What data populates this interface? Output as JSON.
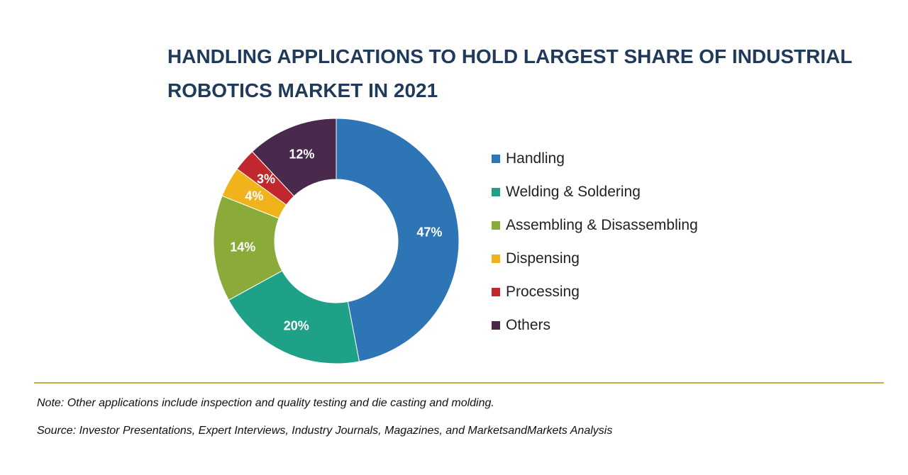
{
  "chart_data": {
    "type": "pie",
    "variant": "donut",
    "title": "HANDLING APPLICATIONS TO HOLD LARGEST SHARE OF INDUSTRIAL ROBOTICS MARKET IN 2021",
    "categories": [
      "Handling",
      "Welding & Soldering",
      "Assembling & Disassembling",
      "Dispensing",
      "Processing",
      "Others"
    ],
    "values": [
      47,
      20,
      14,
      4,
      3,
      12
    ],
    "labels": [
      "47%",
      "20%",
      "14%",
      "4%",
      "3%",
      "12%"
    ],
    "colors": [
      "#2e75b6",
      "#1fa187",
      "#8aab3a",
      "#f0b31b",
      "#c0282d",
      "#4a2a4c"
    ],
    "legend_position": "right"
  },
  "notes": {
    "note": "Note: Other applications include inspection and quality testing and die casting and molding.",
    "source": "Source: Investor Presentations, Expert Interviews, Industry Journals, Magazines, and MarketsandMarkets Analysis"
  }
}
